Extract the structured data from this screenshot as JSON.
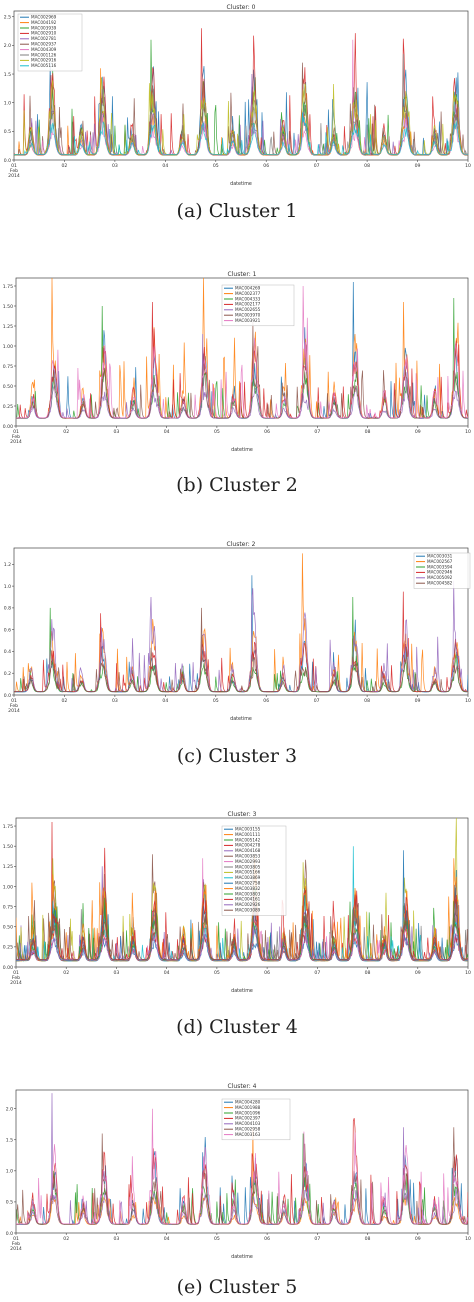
{
  "palette": [
    "#1f77b4",
    "#ff7f0e",
    "#2ca02c",
    "#d62728",
    "#9467bd",
    "#8c564b",
    "#e377c2",
    "#7f7f7f",
    "#bcbd22",
    "#17becf"
  ],
  "chart_data": [
    {
      "type": "line",
      "title": "Cluster: 0",
      "xlabel": "datetime",
      "x_ticks": [
        "01\nFeb\n2014",
        "02",
        "03",
        "04",
        "05",
        "06",
        "07",
        "08",
        "09",
        "10"
      ],
      "xlim": [
        "2014-02-01",
        "2014-02-10"
      ],
      "y_ticks": [
        "0.0",
        "0.5",
        "1.0",
        "1.5",
        "2.0",
        "2.5"
      ],
      "ylim": [
        0,
        2.6
      ],
      "legend_position": "top-left",
      "series_names": [
        "MAC002969",
        "MAC004192",
        "MAC003939",
        "MAC002910",
        "MAC002781",
        "MAC002937",
        "MAC004309",
        "MAC001126",
        "MAC002916",
        "MAC005116"
      ],
      "daily_peaks": [
        1.7,
        1.6,
        2.1,
        2.3,
        1.5,
        1.7,
        2.1,
        1.85,
        1.2
      ],
      "caption": "(a)  Cluster 1"
    },
    {
      "type": "line",
      "title": "Cluster: 1",
      "xlabel": "datetime",
      "x_ticks": [
        "01\nFeb\n2014",
        "02",
        "03",
        "04",
        "05",
        "06",
        "07",
        "08",
        "09",
        "10"
      ],
      "xlim": [
        "2014-02-01",
        "2014-02-10"
      ],
      "y_ticks": [
        "0.00",
        "0.25",
        "0.50",
        "0.75",
        "1.00",
        "1.25",
        "1.50",
        "1.75"
      ],
      "ylim": [
        0,
        1.85
      ],
      "legend_position": "top-center",
      "series_names": [
        "MAC004269",
        "MAC002377",
        "MAC004333",
        "MAC002177",
        "MAC002655",
        "MAC003970",
        "MAC003921"
      ],
      "daily_peaks": [
        1.85,
        1.5,
        1.55,
        1.15,
        1.3,
        1.75,
        1.8,
        1.55,
        1.6
      ],
      "caption": "(b)  Cluster 2"
    },
    {
      "type": "line",
      "title": "Cluster: 2",
      "xlabel": "datetime",
      "x_ticks": [
        "01\nFeb\n2014",
        "02",
        "03",
        "04",
        "05",
        "06",
        "07",
        "08",
        "09",
        "10"
      ],
      "xlim": [
        "2014-02-01",
        "2014-02-10"
      ],
      "y_ticks": [
        "0.0",
        "0.2",
        "0.4",
        "0.6",
        "0.8",
        "1.0",
        "1.2"
      ],
      "ylim": [
        0,
        1.35
      ],
      "legend_position": "top-right",
      "series_names": [
        "MAC003031",
        "MAC002567",
        "MAC003594",
        "MAC002946",
        "MAC005092",
        "MAC004582"
      ],
      "daily_peaks": [
        0.8,
        0.75,
        0.9,
        0.8,
        1.1,
        1.3,
        0.9,
        0.95,
        1.05
      ],
      "caption": "(c)  Cluster 3"
    },
    {
      "type": "line",
      "title": "Cluster: 3",
      "xlabel": "datetime",
      "x_ticks": [
        "01\nFeb\n2014",
        "02",
        "03",
        "04",
        "05",
        "06",
        "07",
        "08",
        "09",
        "10"
      ],
      "xlim": [
        "2014-02-01",
        "2014-02-10"
      ],
      "y_ticks": [
        "0.00",
        "0.25",
        "0.50",
        "0.75",
        "1.00",
        "1.25",
        "1.50",
        "1.75"
      ],
      "ylim": [
        0,
        1.85
      ],
      "legend_position": "top-center",
      "series_names": [
        "MAC003155",
        "MAC001111",
        "MAC005142",
        "MAC004278",
        "MAC004168",
        "MAC003853",
        "MAC002993",
        "MAC003805",
        "MAC005166",
        "MAC003869",
        "MAC002758",
        "MAC003832",
        "MAC003803",
        "MAC004161",
        "MAC002926",
        "MAC003089"
      ],
      "daily_peaks": [
        1.8,
        1.25,
        1.4,
        1.35,
        1.4,
        1.3,
        1.5,
        1.45,
        1.35
      ],
      "caption": "(d)  Cluster 4"
    },
    {
      "type": "line",
      "title": "Cluster: 4",
      "xlabel": "datetime",
      "x_ticks": [
        "01\nFeb\n2014",
        "02",
        "03",
        "04",
        "05",
        "06",
        "07",
        "08",
        "09",
        "10"
      ],
      "xlim": [
        "2014-02-01",
        "2014-02-10"
      ],
      "y_ticks": [
        "0.0",
        "0.5",
        "1.0",
        "1.5",
        "2.0"
      ],
      "ylim": [
        0,
        2.3
      ],
      "legend_position": "top-center",
      "series_names": [
        "MAC004280",
        "MAC001988",
        "MAC001096",
        "MAC002397",
        "MAC004103",
        "MAC002958",
        "MAC003163"
      ],
      "daily_peaks": [
        2.25,
        1.6,
        2.0,
        1.3,
        1.7,
        1.6,
        1.8,
        1.7,
        1.7
      ],
      "caption": "(e)  Cluster 5"
    }
  ]
}
